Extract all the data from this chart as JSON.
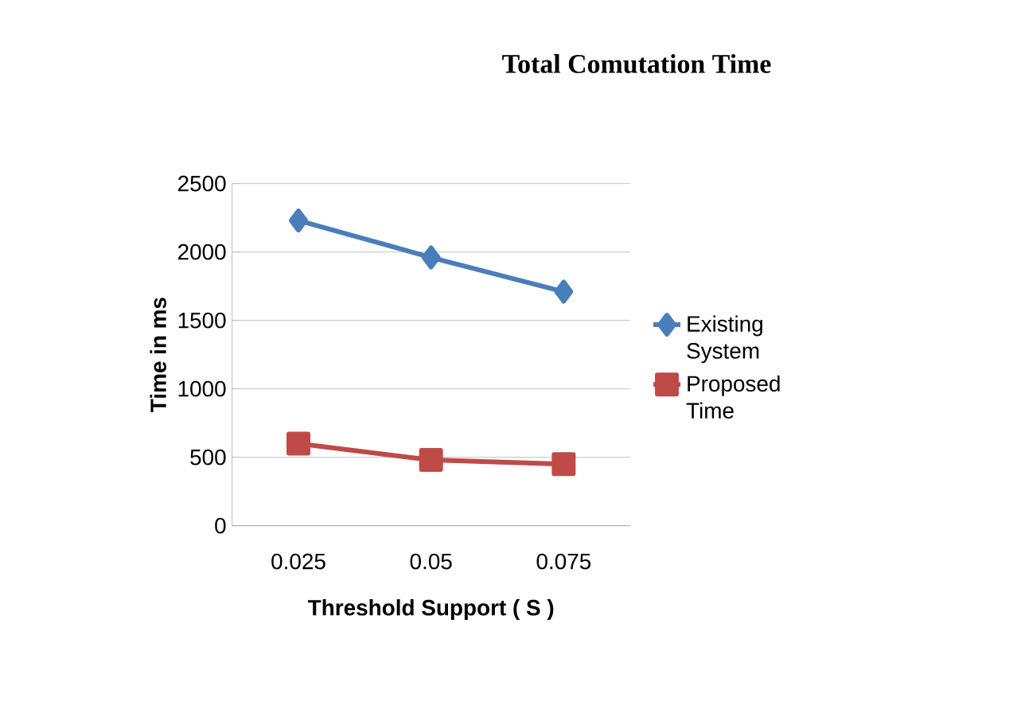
{
  "chart_data": {
    "type": "line",
    "title": "Total Comutation Time",
    "xlabel": "Threshold Support ( S )",
    "ylabel": "Time in ms",
    "categories": [
      "0.025",
      "0.05",
      "0.075"
    ],
    "series": [
      {
        "name": "Existing System",
        "color": "#4a7ebb",
        "values": [
          2230,
          1960,
          1710
        ],
        "marker": "diamond"
      },
      {
        "name": "Proposed Time",
        "color": "#be4b48",
        "values": [
          600,
          480,
          450
        ],
        "marker": "square"
      }
    ],
    "ylim": [
      0,
      2500
    ],
    "yticks": [
      0,
      500,
      1000,
      1500,
      2000,
      2500
    ],
    "grid": "y",
    "legend": "right",
    "line_style": "solid"
  }
}
